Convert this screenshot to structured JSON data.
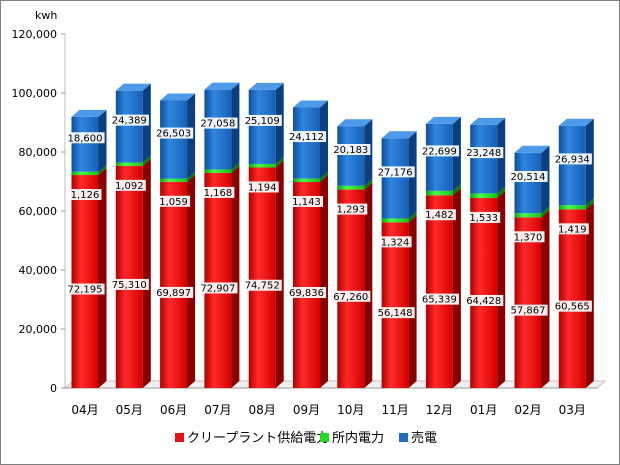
{
  "chart_data": {
    "type": "bar",
    "stacked": true,
    "style": "3d",
    "ylabel": "kwh",
    "ylim": [
      0,
      120000
    ],
    "yticks": [
      0,
      20000,
      40000,
      60000,
      80000,
      100000,
      120000
    ],
    "ytick_labels": [
      "0",
      "20,000",
      "40,000",
      "60,000",
      "80,000",
      "100,000",
      "120,000"
    ],
    "categories": [
      "04月",
      "05月",
      "06月",
      "07月",
      "08月",
      "09月",
      "10月",
      "11月",
      "12月",
      "01月",
      "02月",
      "03月"
    ],
    "series": [
      {
        "name": "クリープラント供給電力",
        "color": "#e81010",
        "values": [
          72195,
          75310,
          69897,
          72907,
          74752,
          69836,
          67260,
          56148,
          65339,
          64428,
          57867,
          60565
        ],
        "labels": [
          "72,195",
          "75,310",
          "69,897",
          "72,907",
          "74,752",
          "69,836",
          "67,260",
          "56,148",
          "65,339",
          "64,428",
          "57,867",
          "60,565"
        ]
      },
      {
        "name": "所内電力",
        "color": "#22dd22",
        "values": [
          1126,
          1092,
          1059,
          1168,
          1194,
          1143,
          1293,
          1324,
          1482,
          1533,
          1370,
          1419
        ],
        "labels": [
          "1,126",
          "1,092",
          "1,059",
          "1,168",
          "1,194",
          "1,143",
          "1,293",
          "1,324",
          "1,482",
          "1,533",
          "1,370",
          "1,419"
        ]
      },
      {
        "name": "売電",
        "color": "#1f6fc5",
        "values": [
          18600,
          24389,
          26503,
          27058,
          25109,
          24112,
          20183,
          27176,
          22699,
          23248,
          20514,
          26934
        ],
        "labels": [
          "18,600",
          "24,389",
          "26,503",
          "27,058",
          "25,109",
          "24,112",
          "20,183",
          "27,176",
          "22,699",
          "23,248",
          "20,514",
          "26,934"
        ]
      }
    ],
    "grid": false,
    "legend": "bottom"
  }
}
